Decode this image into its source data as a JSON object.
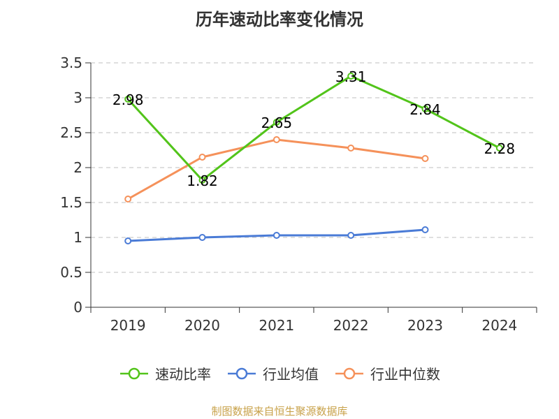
{
  "title": "历年速动比率变化情况",
  "footer": "制图数据来自恒生聚源数据库",
  "chart_data": {
    "type": "line",
    "title": "历年速动比率变化情况",
    "categories": [
      "2019",
      "2020",
      "2021",
      "2022",
      "2023",
      "2024"
    ],
    "ylim": [
      0,
      3.5
    ],
    "yticks": [
      "0",
      "0.5",
      "1",
      "1.5",
      "2",
      "2.5",
      "3",
      "3.5"
    ],
    "grid": true,
    "legend_position": "bottom",
    "series": [
      {
        "name": "速动比率",
        "color": "#52c41a",
        "values": [
          2.98,
          1.82,
          2.65,
          3.31,
          2.84,
          2.28
        ],
        "labels": [
          "2.98",
          "1.82",
          "2.65",
          "3.31",
          "2.84",
          "2.28"
        ]
      },
      {
        "name": "行业均值",
        "color": "#4a7bd6",
        "values": [
          0.95,
          1.0,
          1.03,
          1.03,
          1.11,
          null
        ]
      },
      {
        "name": "行业中位数",
        "color": "#f5915a",
        "values": [
          1.55,
          2.15,
          2.4,
          2.28,
          2.13,
          null
        ]
      }
    ]
  }
}
